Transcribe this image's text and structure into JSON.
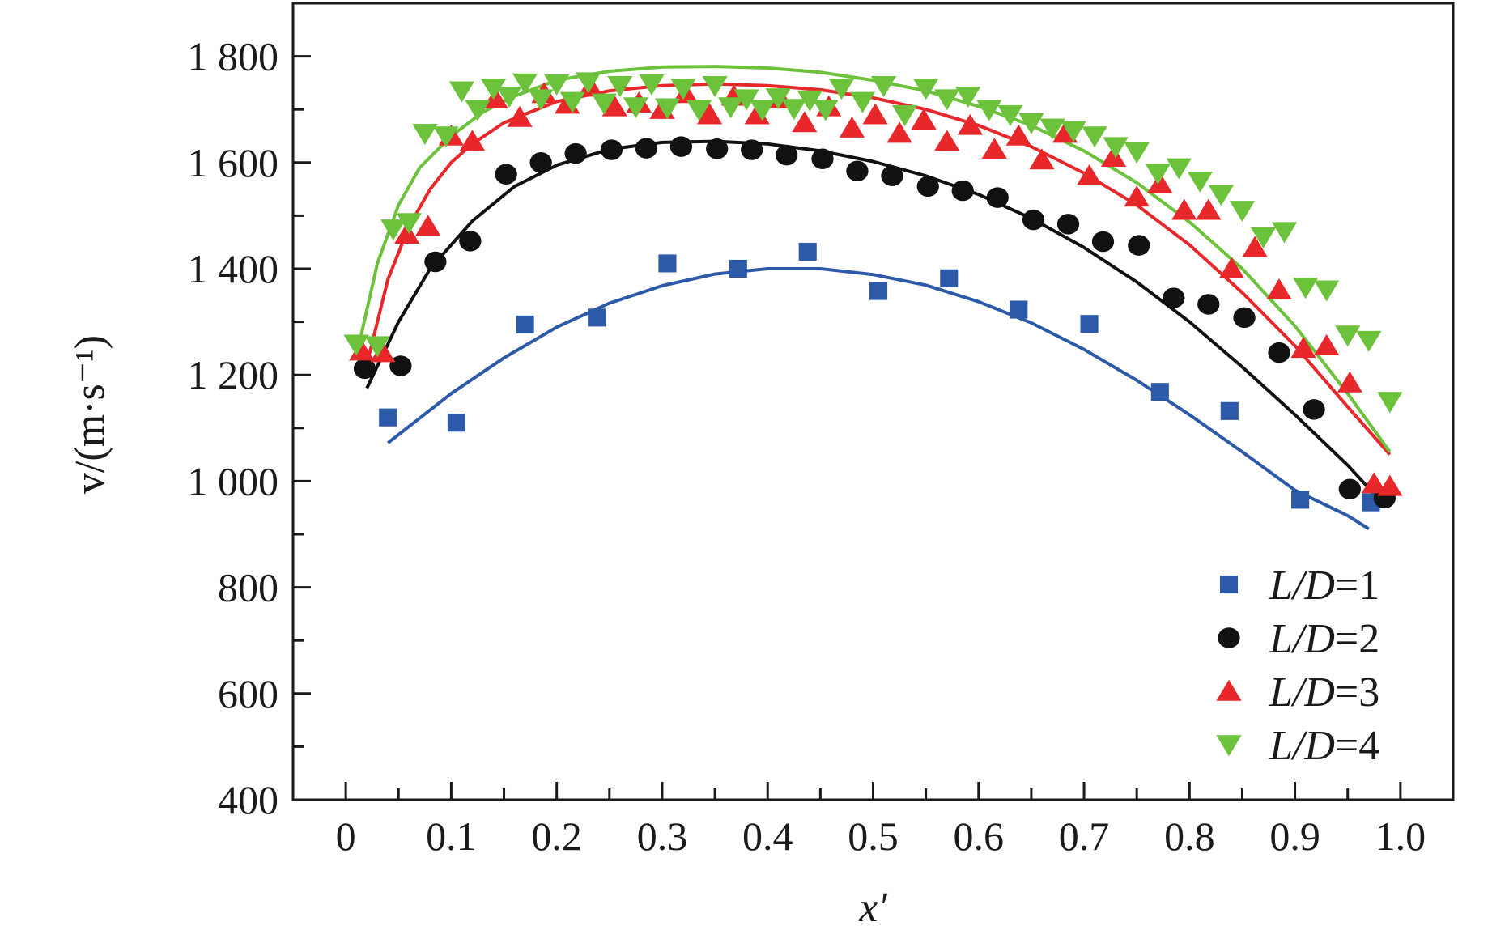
{
  "chart_data": {
    "type": "scatter",
    "xlabel": "x′",
    "ylabel": "v/(m·s⁻¹)",
    "xlim": [
      -0.05,
      1.05
    ],
    "ylim": [
      400,
      1900
    ],
    "x_ticks": [
      0,
      0.1,
      0.2,
      0.3,
      0.4,
      0.5,
      0.6,
      0.7,
      0.8,
      0.9,
      1.0
    ],
    "x_tick_labels": [
      "0",
      "0.1",
      "0.2",
      "0.3",
      "0.4",
      "0.5",
      "0.6",
      "0.7",
      "0.8",
      "0.9",
      "1.0"
    ],
    "y_ticks": [
      400,
      600,
      800,
      1000,
      1200,
      1400,
      1600,
      1800
    ],
    "y_tick_labels": [
      "400",
      "600",
      "800",
      "1 000",
      "1 200",
      "1 400",
      "1 600",
      "1 800"
    ],
    "legend_position": "bottom-right",
    "grid": false,
    "series": [
      {
        "name": "L/D=1",
        "label_italic": "L/D",
        "label_suffix": "=1",
        "color": "#2d5aa8",
        "marker": "square",
        "x": [
          0.04,
          0.105,
          0.17,
          0.238,
          0.305,
          0.372,
          0.438,
          0.505,
          0.572,
          0.638,
          0.705,
          0.772,
          0.838,
          0.905,
          0.972
        ],
        "y": [
          1120,
          1110,
          1295,
          1308,
          1410,
          1400,
          1432,
          1358,
          1382,
          1323,
          1296,
          1168,
          1132,
          965,
          960
        ],
        "fit_x": [
          0.04,
          0.1,
          0.15,
          0.2,
          0.25,
          0.3,
          0.35,
          0.4,
          0.45,
          0.5,
          0.55,
          0.6,
          0.65,
          0.7,
          0.75,
          0.8,
          0.85,
          0.9,
          0.95,
          0.97
        ],
        "fit_y": [
          1072,
          1165,
          1232,
          1290,
          1335,
          1368,
          1390,
          1400,
          1400,
          1389,
          1369,
          1338,
          1298,
          1248,
          1190,
          1125,
          1055,
          983,
          935,
          910
        ]
      },
      {
        "name": "L/D=2",
        "label_italic": "L/D",
        "label_suffix": "=2",
        "color": "#111111",
        "marker": "circle",
        "x": [
          0.018,
          0.052,
          0.085,
          0.118,
          0.152,
          0.185,
          0.218,
          0.252,
          0.285,
          0.318,
          0.352,
          0.385,
          0.418,
          0.452,
          0.485,
          0.518,
          0.552,
          0.585,
          0.618,
          0.652,
          0.685,
          0.718,
          0.752,
          0.785,
          0.818,
          0.852,
          0.885,
          0.918,
          0.952,
          0.985
        ],
        "y": [
          1212,
          1217,
          1413,
          1452,
          1578,
          1600,
          1617,
          1624,
          1627,
          1630,
          1626,
          1624,
          1614,
          1607,
          1584,
          1575,
          1555,
          1547,
          1534,
          1492,
          1484,
          1451,
          1444,
          1345,
          1333,
          1308,
          1242,
          1135,
          985,
          968
        ],
        "fit_x": [
          0.02,
          0.05,
          0.08,
          0.12,
          0.16,
          0.2,
          0.25,
          0.3,
          0.35,
          0.4,
          0.45,
          0.5,
          0.55,
          0.6,
          0.65,
          0.7,
          0.75,
          0.8,
          0.85,
          0.9,
          0.95,
          0.98
        ],
        "fit_y": [
          1175,
          1300,
          1400,
          1490,
          1555,
          1595,
          1625,
          1638,
          1640,
          1635,
          1622,
          1602,
          1575,
          1540,
          1495,
          1440,
          1375,
          1300,
          1215,
          1125,
          1030,
          965
        ]
      },
      {
        "name": "L/D=3",
        "label_italic": "L/D",
        "label_suffix": "=3",
        "color": "#e8272b",
        "marker": "triangle-up",
        "x": [
          0.015,
          0.035,
          0.058,
          0.078,
          0.1,
          0.12,
          0.142,
          0.165,
          0.188,
          0.21,
          0.232,
          0.255,
          0.278,
          0.3,
          0.322,
          0.345,
          0.368,
          0.39,
          0.412,
          0.435,
          0.458,
          0.48,
          0.502,
          0.525,
          0.548,
          0.57,
          0.592,
          0.615,
          0.638,
          0.66,
          0.682,
          0.705,
          0.728,
          0.75,
          0.772,
          0.795,
          0.818,
          0.84,
          0.862,
          0.885,
          0.908,
          0.93,
          0.952,
          0.975,
          0.99
        ],
        "y": [
          1245,
          1242,
          1465,
          1480,
          1650,
          1640,
          1720,
          1685,
          1730,
          1710,
          1742,
          1705,
          1712,
          1700,
          1730,
          1690,
          1725,
          1690,
          1720,
          1675,
          1705,
          1665,
          1690,
          1655,
          1680,
          1640,
          1670,
          1625,
          1650,
          1605,
          1655,
          1575,
          1610,
          1535,
          1560,
          1510,
          1510,
          1400,
          1440,
          1360,
          1250,
          1255,
          1185,
          995,
          990
        ],
        "fit_x": [
          0.02,
          0.04,
          0.06,
          0.08,
          0.1,
          0.12,
          0.15,
          0.2,
          0.25,
          0.3,
          0.35,
          0.4,
          0.45,
          0.5,
          0.55,
          0.6,
          0.65,
          0.7,
          0.75,
          0.8,
          0.85,
          0.9,
          0.95,
          0.99
        ],
        "fit_y": [
          1220,
          1380,
          1480,
          1550,
          1600,
          1635,
          1675,
          1715,
          1735,
          1745,
          1748,
          1745,
          1737,
          1722,
          1700,
          1670,
          1630,
          1580,
          1520,
          1445,
          1355,
          1255,
          1140,
          1050
        ]
      },
      {
        "name": "L/D=4",
        "label_italic": "L/D",
        "label_suffix": "=4",
        "color": "#6cc23b",
        "marker": "triangle-down",
        "x": [
          0.01,
          0.03,
          0.045,
          0.06,
          0.075,
          0.095,
          0.11,
          0.125,
          0.14,
          0.155,
          0.17,
          0.185,
          0.2,
          0.215,
          0.23,
          0.245,
          0.26,
          0.275,
          0.29,
          0.305,
          0.32,
          0.335,
          0.35,
          0.365,
          0.38,
          0.395,
          0.41,
          0.425,
          0.44,
          0.455,
          0.47,
          0.49,
          0.51,
          0.53,
          0.55,
          0.57,
          0.59,
          0.61,
          0.63,
          0.65,
          0.67,
          0.69,
          0.71,
          0.73,
          0.75,
          0.77,
          0.79,
          0.81,
          0.83,
          0.85,
          0.87,
          0.89,
          0.91,
          0.93,
          0.95,
          0.97,
          0.99
        ],
        "y": [
          1258,
          1255,
          1475,
          1487,
          1655,
          1650,
          1735,
          1700,
          1740,
          1725,
          1750,
          1720,
          1748,
          1715,
          1752,
          1712,
          1745,
          1705,
          1748,
          1703,
          1740,
          1700,
          1745,
          1705,
          1720,
          1700,
          1722,
          1702,
          1718,
          1700,
          1740,
          1715,
          1745,
          1690,
          1740,
          1720,
          1725,
          1700,
          1690,
          1675,
          1665,
          1660,
          1650,
          1630,
          1620,
          1580,
          1590,
          1565,
          1540,
          1510,
          1460,
          1470,
          1365,
          1360,
          1275,
          1265,
          1150
        ],
        "fit_x": [
          0.01,
          0.03,
          0.05,
          0.07,
          0.1,
          0.13,
          0.16,
          0.2,
          0.25,
          0.3,
          0.35,
          0.4,
          0.45,
          0.5,
          0.55,
          0.6,
          0.65,
          0.7,
          0.75,
          0.8,
          0.85,
          0.9,
          0.95,
          0.99
        ],
        "fit_y": [
          1235,
          1410,
          1520,
          1590,
          1650,
          1695,
          1725,
          1755,
          1772,
          1780,
          1781,
          1778,
          1770,
          1755,
          1735,
          1706,
          1670,
          1622,
          1562,
          1488,
          1400,
          1292,
          1165,
          1055
        ]
      }
    ]
  }
}
